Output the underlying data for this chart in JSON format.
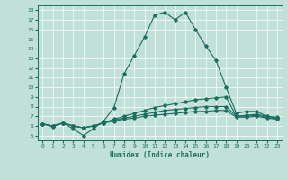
{
  "xlabel": "Humidex (Indice chaleur)",
  "xlim": [
    -0.5,
    23.5
  ],
  "ylim": [
    4.5,
    18.5
  ],
  "xticks": [
    0,
    1,
    2,
    3,
    4,
    5,
    6,
    7,
    8,
    9,
    10,
    11,
    12,
    13,
    14,
    15,
    16,
    17,
    18,
    19,
    20,
    21,
    22,
    23
  ],
  "yticks": [
    5,
    6,
    7,
    8,
    9,
    10,
    11,
    12,
    13,
    14,
    15,
    16,
    17,
    18
  ],
  "bg_color": "#c0e0d8",
  "line_color": "#1a6e60",
  "grid_color": "#ffffff",
  "lines": [
    {
      "x": [
        0,
        1,
        2,
        3,
        4,
        5,
        6,
        7,
        8,
        9,
        10,
        11,
        12,
        13,
        14,
        15,
        16,
        17,
        18,
        19,
        20,
        21,
        22,
        23
      ],
      "y": [
        6.2,
        5.9,
        6.3,
        5.7,
        5.0,
        5.7,
        6.5,
        7.9,
        11.4,
        13.3,
        15.2,
        17.5,
        17.8,
        17.0,
        17.8,
        16.0,
        14.3,
        12.8,
        10.0,
        7.3,
        7.5,
        7.5,
        7.0,
        6.9
      ]
    },
    {
      "x": [
        0,
        1,
        2,
        3,
        4,
        5,
        6,
        7,
        8,
        9,
        10,
        11,
        12,
        13,
        14,
        15,
        16,
        17,
        18,
        19,
        20,
        21,
        22,
        23
      ],
      "y": [
        6.2,
        6.0,
        6.3,
        6.0,
        5.8,
        6.0,
        6.3,
        6.7,
        7.0,
        7.3,
        7.6,
        7.9,
        8.1,
        8.3,
        8.5,
        8.7,
        8.8,
        8.9,
        9.0,
        7.0,
        7.1,
        7.2,
        7.0,
        6.8
      ]
    },
    {
      "x": [
        0,
        1,
        2,
        3,
        4,
        5,
        6,
        7,
        8,
        9,
        10,
        11,
        12,
        13,
        14,
        15,
        16,
        17,
        18,
        19,
        20,
        21,
        22,
        23
      ],
      "y": [
        6.2,
        6.0,
        6.3,
        6.0,
        5.8,
        6.0,
        6.3,
        6.6,
        6.8,
        7.0,
        7.2,
        7.4,
        7.6,
        7.7,
        7.8,
        7.9,
        8.0,
        8.0,
        8.0,
        7.0,
        7.0,
        7.1,
        6.9,
        6.7
      ]
    },
    {
      "x": [
        0,
        1,
        2,
        3,
        4,
        5,
        6,
        7,
        8,
        9,
        10,
        11,
        12,
        13,
        14,
        15,
        16,
        17,
        18,
        19,
        20,
        21,
        22,
        23
      ],
      "y": [
        6.2,
        6.0,
        6.3,
        6.0,
        5.8,
        6.0,
        6.3,
        6.5,
        6.7,
        6.8,
        7.0,
        7.1,
        7.2,
        7.3,
        7.4,
        7.5,
        7.5,
        7.6,
        7.6,
        6.9,
        6.9,
        7.0,
        6.8,
        6.7
      ]
    }
  ]
}
